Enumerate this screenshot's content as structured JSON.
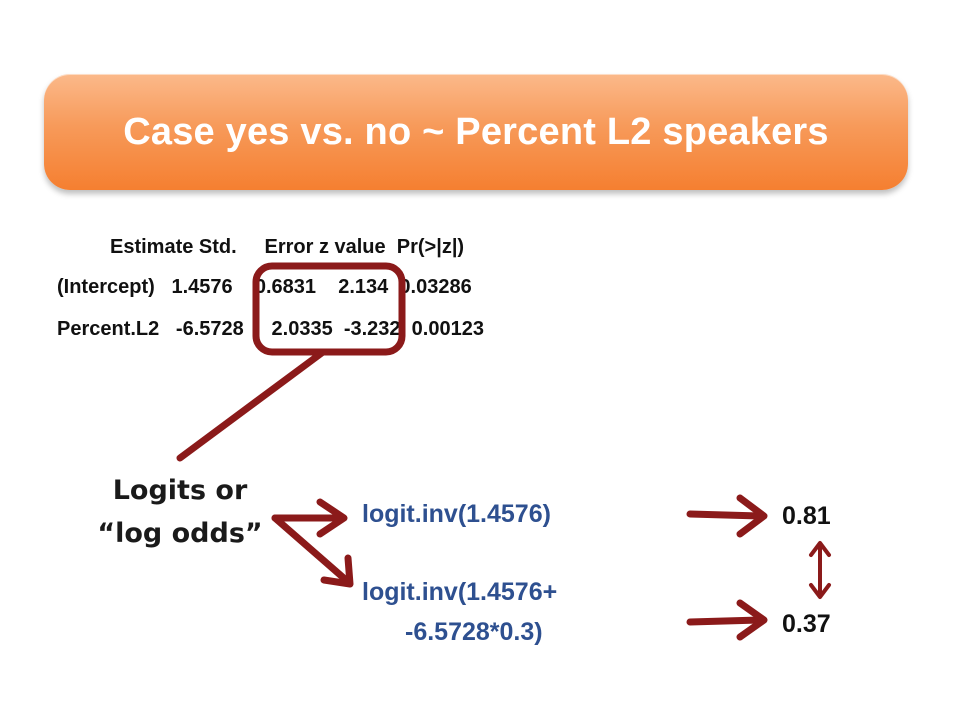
{
  "title": "Case yes vs. no ~ Percent L2 speakers",
  "regression": {
    "header": "Estimate Std.     Error z value  Pr(>|z|)",
    "intercept_row": "(Intercept)   1.4576    0.6831    2.134  0.03286",
    "percent_row": "Percent.L2   -6.5728     2.0335  -3.232  0.00123"
  },
  "logits_label": {
    "line1": "Logits or",
    "line2": "“log odds”"
  },
  "formulas": {
    "first": "logit.inv(1.4576)",
    "second_line1": "logit.inv(1.4576+",
    "second_line2": "-6.5728*0.3)"
  },
  "results": {
    "first": "0.81",
    "second": "0.37"
  },
  "colors": {
    "title_bar": "#f79a5a",
    "arrow": "#8b1a1a",
    "formula_text": "#2e5090"
  }
}
